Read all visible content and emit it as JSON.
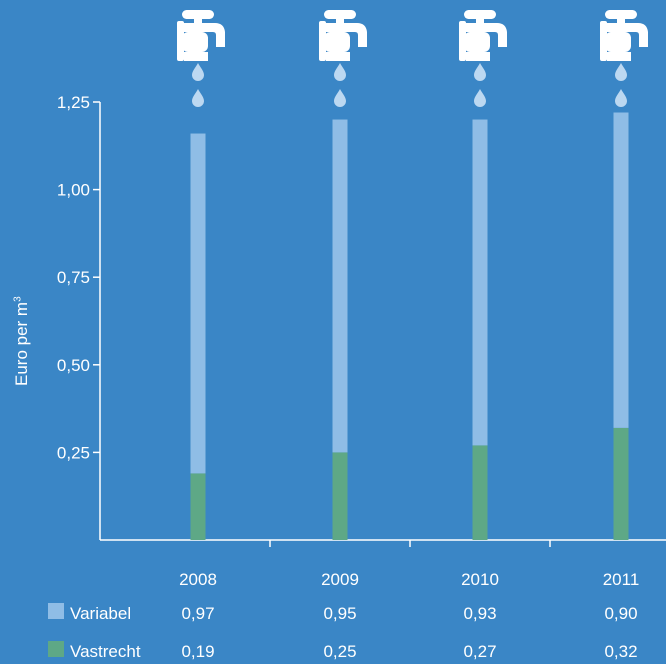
{
  "colors": {
    "background": "#3a86c6",
    "variabel": "#8fbde6",
    "vastrecht": "#5ea886",
    "axis": "#ffffff",
    "icon": "#ffffff",
    "drop": "#bcd8f1"
  },
  "chart_data": {
    "type": "bar",
    "stacked": true,
    "ylabel_text": "Euro per m",
    "ylabel_sup": "3",
    "xlabel": "",
    "title": "",
    "ylim": [
      0,
      1.25
    ],
    "yticks": [
      0.25,
      0.5,
      0.75,
      1.0,
      1.25
    ],
    "ytick_labels": [
      "0,25",
      "0,50",
      "0,75",
      "1,00",
      "1,25"
    ],
    "categories": [
      "2008",
      "2009",
      "2010",
      "2011"
    ],
    "series": [
      {
        "name": "Vastrecht",
        "values": [
          0.19,
          0.25,
          0.27,
          0.32
        ],
        "labels": [
          "0,19",
          "0,25",
          "0,27",
          "0,32"
        ],
        "color": "#5ea886"
      },
      {
        "name": "Variabel",
        "values": [
          0.97,
          0.95,
          0.93,
          0.9
        ],
        "labels": [
          "0,97",
          "0,95",
          "0,93",
          "0,90"
        ],
        "color": "#8fbde6"
      }
    ],
    "grid": false,
    "legend": "bottom-left table",
    "decorations": "water tap icon with two drops above each bar"
  }
}
